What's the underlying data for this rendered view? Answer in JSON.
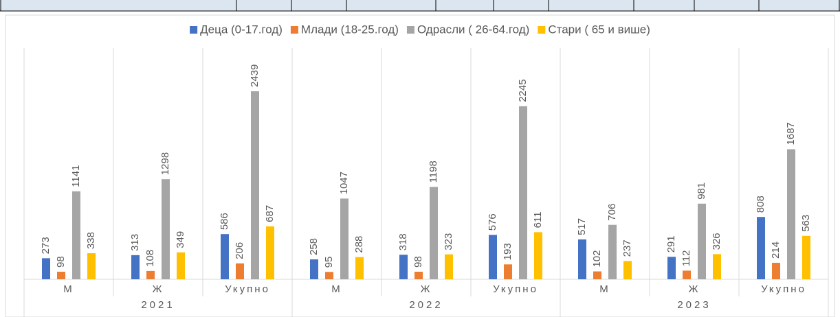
{
  "chart_data": {
    "type": "bar",
    "categories": [
      "М",
      "Ж",
      "Укупно",
      "М",
      "Ж",
      "Укупно",
      "М",
      "Ж",
      "Укупно"
    ],
    "groups": [
      "2021",
      "2022",
      "2023"
    ],
    "series": [
      {
        "name": "Деца (0-17.год)",
        "color": "#4472c4",
        "values": [
          273,
          313,
          586,
          258,
          318,
          576,
          517,
          291,
          808
        ]
      },
      {
        "name": "Млади (18-25.год)",
        "color": "#ed7d31",
        "values": [
          98,
          108,
          206,
          95,
          98,
          193,
          102,
          112,
          214
        ]
      },
      {
        "name": "Одрасли ( 26-64.год)",
        "color": "#a5a5a5",
        "values": [
          1141,
          1298,
          2439,
          1047,
          1198,
          2245,
          706,
          981,
          1687
        ]
      },
      {
        "name": "Стари ( 65 и више)",
        "color": "#ffc000",
        "values": [
          338,
          349,
          687,
          288,
          323,
          611,
          237,
          326,
          563
        ]
      }
    ],
    "ylim": [
      0,
      3000
    ],
    "legend": "top"
  }
}
